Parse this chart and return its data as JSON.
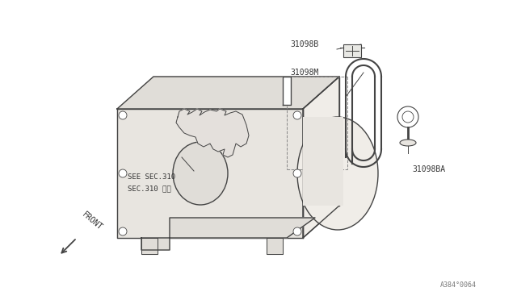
{
  "bg_color": "#ffffff",
  "line_color": "#444444",
  "text_color": "#333333",
  "fill_color": "#f0ede8",
  "fill_dark": "#e0ddd8",
  "fill_med": "#e8e5e0",
  "label_31098B": "31098B",
  "label_31098M": "31098M",
  "label_31098BA": "31098BA",
  "see_sec_lines": [
    "SEE SEC.310",
    "SEC.310 参照"
  ],
  "front_text": "FRONT",
  "diagram_id": "A384┆0064",
  "lw_main": 1.0,
  "lw_thin": 0.7,
  "font_size": 7
}
